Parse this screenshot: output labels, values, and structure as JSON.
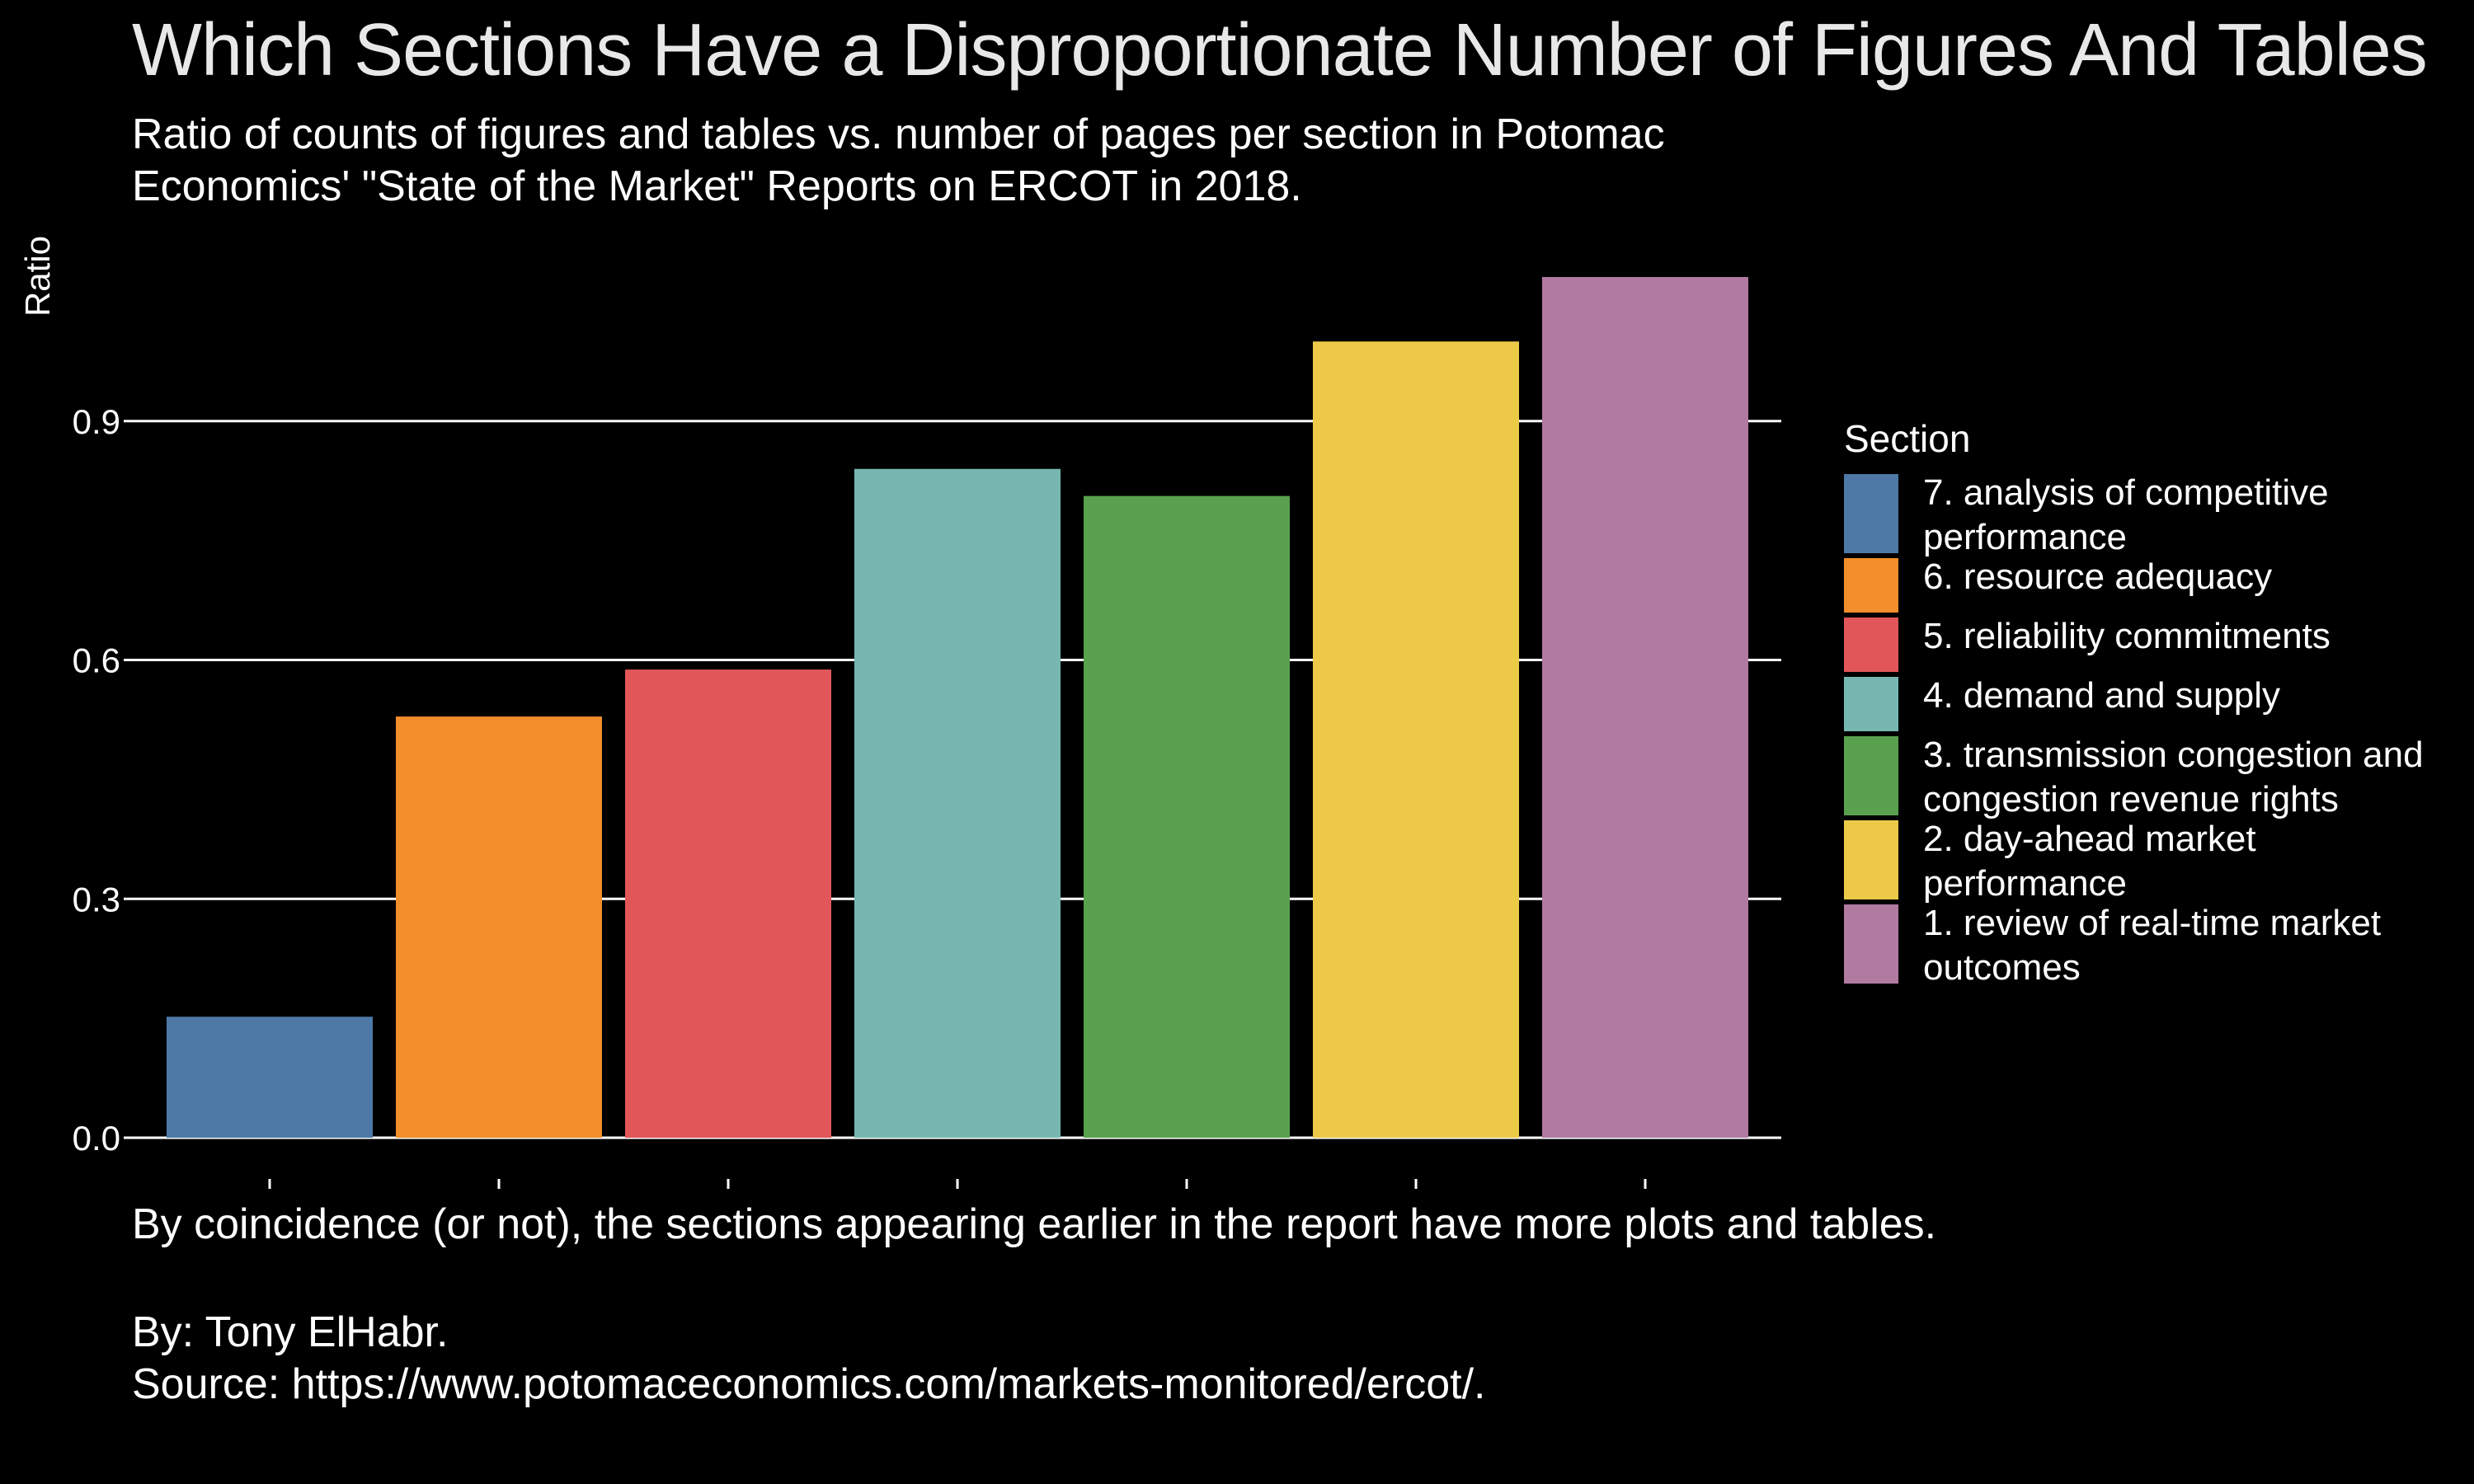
{
  "title": "Which Sections Have a Disproportionate Number of Figures And Tables",
  "subtitle": "Ratio of counts of figures and tables vs. number of pages per section in Potomac Economics' \"State of the Market\" Reports on ERCOT in 2018.",
  "caption": "By coincidence (or not), the sections appearing earlier in the report have more plots and tables.",
  "credit": {
    "author": "By: Tony ElHabr.",
    "source": "Source: https://www.potomaceconomics.com/markets-monitored/ercot/."
  },
  "legend": {
    "title": "Section",
    "items": [
      {
        "label": "7. analysis of competitive performance",
        "color": "#4e79a7"
      },
      {
        "label": "6. resource adequacy",
        "color": "#f28e2b"
      },
      {
        "label": "5. reliability commitments",
        "color": "#e15759"
      },
      {
        "label": "4. demand and supply",
        "color": "#76b7b2"
      },
      {
        "label": "3. transmission congestion and congestion revenue rights",
        "color": "#59a14f"
      },
      {
        "label": "2. day-ahead market performance",
        "color": "#edc948"
      },
      {
        "label": "1. review of real-time market outcomes",
        "color": "#b07aa1"
      }
    ]
  },
  "chart_data": {
    "type": "bar",
    "title": "Which Sections Have a Disproportionate Number of Figures And Tables",
    "xlabel": "",
    "ylabel": "Ratio",
    "categories": [
      "7. analysis of competitive performance",
      "6. resource adequacy",
      "5. reliability commitments",
      "4. demand and supply",
      "3. transmission congestion and congestion revenue rights",
      "2. day-ahead market performance",
      "1. review of real-time market outcomes"
    ],
    "values": [
      0.152,
      0.529,
      0.588,
      0.84,
      0.806,
      1.0,
      1.081
    ],
    "colors": [
      "#4e79a7",
      "#f28e2b",
      "#e15759",
      "#76b7b2",
      "#59a14f",
      "#edc948",
      "#b07aa1"
    ],
    "ylim": [
      0,
      1.081
    ],
    "yticks": [
      0.0,
      0.3,
      0.6,
      0.9
    ],
    "ytick_labels": [
      "0.0",
      "0.3",
      "0.6",
      "0.9"
    ],
    "xtick_labels": [
      "",
      "",
      "",
      "",
      "",
      "",
      ""
    ],
    "grid": "horizontal major",
    "legend_position": "right"
  }
}
